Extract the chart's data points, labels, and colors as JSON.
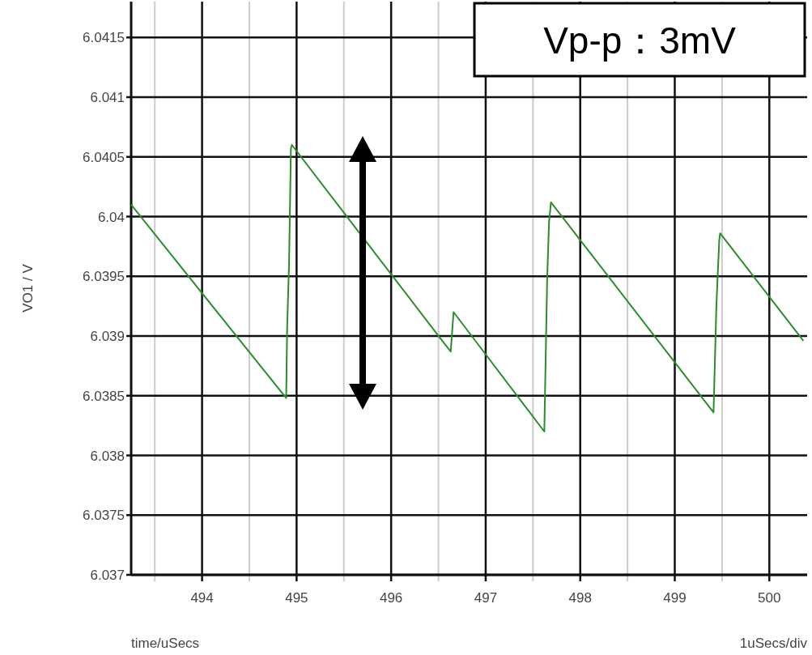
{
  "chart_data": {
    "type": "line",
    "xlabel": "time/uSecs",
    "ylabel": "VO1 / V",
    "annotations": [
      "Vp-p：3mV",
      "1uSecs/div"
    ],
    "xlim": [
      493.25,
      500.4
    ],
    "ylim": [
      6.037,
      6.0418
    ],
    "xticks": [
      494,
      495,
      496,
      497,
      498,
      499,
      500
    ],
    "yticks": [
      6.037,
      6.0375,
      6.038,
      6.0385,
      6.039,
      6.0395,
      6.04,
      6.0405,
      6.041,
      6.0415
    ],
    "grid": true,
    "marker": "none",
    "line_style": "solid",
    "series": [
      {
        "color": "#2e8b2e",
        "x": [
          493.25,
          494.89,
          494.9,
          494.92,
          494.94,
          494.95,
          496.54,
          496.63,
          496.66,
          497.62,
          497.65,
          497.67,
          497.69,
          499.41,
          499.44,
          499.47,
          499.48,
          500.36
        ],
        "values": [
          6.0401,
          6.03848,
          6.03907,
          6.0396,
          6.04057,
          6.0406,
          6.03896,
          6.03887,
          6.0392,
          6.0382,
          6.03947,
          6.03995,
          6.04012,
          6.03836,
          6.03925,
          6.0398,
          6.03986,
          6.03896
        ]
      }
    ]
  }
}
